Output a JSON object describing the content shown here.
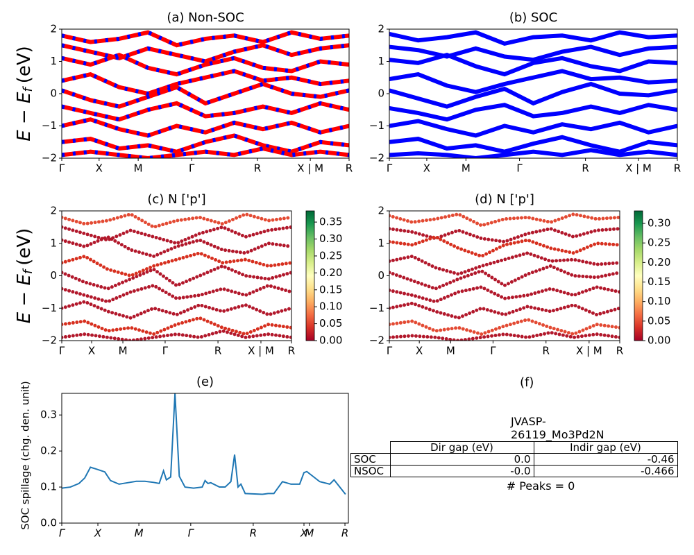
{
  "chart_data": [
    {
      "type": "band",
      "title": "(a) Non-SOC",
      "ylabel": {
        "main": "E − E",
        "sub": "f",
        "unit": "(eV)"
      },
      "color": "#ff0000",
      "dash_color": "#0000ff",
      "xlim": [
        0,
        1
      ],
      "xticks": [
        {
          "value": 0,
          "label": "Γ"
        },
        {
          "value": 0.13,
          "label": "X"
        },
        {
          "value": 0.266,
          "label": "M"
        },
        {
          "value": 0.452,
          "label": "Γ"
        },
        {
          "value": 0.681,
          "label": "R"
        },
        {
          "value": 0.865,
          "label": "X | M"
        },
        {
          "value": 1,
          "label": "R"
        }
      ],
      "ylim": [
        -2,
        2
      ],
      "yticks": [
        {
          "value": -2,
          "label": "−2"
        },
        {
          "value": -1,
          "label": "−1"
        },
        0,
        1,
        2
      ],
      "x": [
        0,
        0.1,
        0.2,
        0.3,
        0.4,
        0.5,
        0.6,
        0.7,
        0.8,
        0.9,
        1
      ],
      "series": [
        {
          "values": [
            1.8,
            1.6,
            1.7,
            1.9,
            1.5,
            1.7,
            1.8,
            1.6,
            1.9,
            1.7,
            1.8
          ]
        },
        {
          "values": [
            1.5,
            1.3,
            1.1,
            1.4,
            1.2,
            1.0,
            1.3,
            1.5,
            1.2,
            1.4,
            1.5
          ]
        },
        {
          "values": [
            1.1,
            0.9,
            1.2,
            0.8,
            0.6,
            0.9,
            1.1,
            0.8,
            0.7,
            1.0,
            0.9
          ]
        },
        {
          "values": [
            0.4,
            0.6,
            0.2,
            0.0,
            0.3,
            0.5,
            0.7,
            0.4,
            0.5,
            0.3,
            0.4
          ]
        },
        {
          "values": [
            0.1,
            -0.2,
            -0.4,
            -0.1,
            0.2,
            -0.3,
            0.0,
            0.3,
            0.0,
            -0.1,
            0.1
          ]
        },
        {
          "values": [
            -0.4,
            -0.6,
            -0.8,
            -0.5,
            -0.3,
            -0.7,
            -0.6,
            -0.4,
            -0.6,
            -0.3,
            -0.5
          ]
        },
        {
          "values": [
            -1.0,
            -0.8,
            -1.1,
            -1.3,
            -1.0,
            -1.2,
            -0.9,
            -1.1,
            -0.9,
            -1.2,
            -1.0
          ]
        },
        {
          "values": [
            -1.5,
            -1.4,
            -1.7,
            -1.6,
            -1.8,
            -1.5,
            -1.3,
            -1.6,
            -1.8,
            -1.5,
            -1.6
          ]
        },
        {
          "values": [
            -1.9,
            -1.8,
            -1.9,
            -2.0,
            -1.9,
            -1.8,
            -1.9,
            -1.7,
            -1.9,
            -1.8,
            -1.9
          ]
        }
      ]
    },
    {
      "type": "band",
      "title": "(b) SOC",
      "color": "#0000ff",
      "xlim": [
        0,
        1
      ],
      "xticks": [
        {
          "value": 0,
          "label": "Γ"
        },
        {
          "value": 0.13,
          "label": "X"
        },
        {
          "value": 0.266,
          "label": "M"
        },
        {
          "value": 0.452,
          "label": "Γ"
        },
        {
          "value": 0.681,
          "label": "R"
        },
        {
          "value": 0.865,
          "label": "X | M"
        },
        {
          "value": 1,
          "label": "R"
        }
      ],
      "ylim": [
        -2,
        2
      ],
      "yticks": [
        {
          "value": -2,
          "label": "−2"
        },
        {
          "value": -1,
          "label": "−1"
        },
        0,
        1,
        2
      ],
      "x": [
        0,
        0.1,
        0.2,
        0.3,
        0.4,
        0.5,
        0.6,
        0.7,
        0.8,
        0.9,
        1
      ],
      "series": [
        {
          "values": [
            1.85,
            1.65,
            1.75,
            1.9,
            1.55,
            1.75,
            1.8,
            1.65,
            1.9,
            1.75,
            1.8
          ]
        },
        {
          "values": [
            1.45,
            1.35,
            1.15,
            1.4,
            1.15,
            1.05,
            1.3,
            1.45,
            1.2,
            1.4,
            1.45
          ]
        },
        {
          "values": [
            1.05,
            0.95,
            1.2,
            0.85,
            0.6,
            0.95,
            1.1,
            0.85,
            0.7,
            1.0,
            0.95
          ]
        },
        {
          "values": [
            0.45,
            0.6,
            0.25,
            0.05,
            0.3,
            0.5,
            0.7,
            0.45,
            0.5,
            0.35,
            0.4
          ]
        },
        {
          "values": [
            0.1,
            -0.15,
            -0.4,
            -0.1,
            0.15,
            -0.3,
            0.05,
            0.3,
            0.0,
            -0.05,
            0.1
          ]
        },
        {
          "values": [
            -0.45,
            -0.6,
            -0.8,
            -0.5,
            -0.35,
            -0.7,
            -0.6,
            -0.4,
            -0.6,
            -0.35,
            -0.5
          ]
        },
        {
          "values": [
            -1.0,
            -0.85,
            -1.1,
            -1.3,
            -1.0,
            -1.2,
            -0.95,
            -1.1,
            -0.9,
            -1.2,
            -1.0
          ]
        },
        {
          "values": [
            -1.5,
            -1.4,
            -1.7,
            -1.6,
            -1.8,
            -1.55,
            -1.35,
            -1.6,
            -1.8,
            -1.5,
            -1.6
          ]
        },
        {
          "values": [
            -1.9,
            -1.85,
            -1.9,
            -2.0,
            -1.9,
            -1.8,
            -1.9,
            -1.75,
            -1.9,
            -1.8,
            -1.9
          ]
        }
      ]
    },
    {
      "type": "band_scatter",
      "title": "(c)  N ['p']",
      "ylabel": {
        "main": "E − E",
        "sub": "f",
        "unit": "(eV)"
      },
      "color": "#b2182b",
      "colormap": "RdYlGn",
      "clim": [
        0,
        0.383
      ],
      "cticks": [
        {
          "value": 0,
          "label": "0.00"
        },
        {
          "value": 0.05,
          "label": "0.05"
        },
        {
          "value": 0.1,
          "label": "0.10"
        },
        {
          "value": 0.15,
          "label": "0.15"
        },
        {
          "value": 0.2,
          "label": "0.20"
        },
        {
          "value": 0.25,
          "label": "0.25"
        },
        {
          "value": 0.3,
          "label": "0.30"
        },
        {
          "value": 0.35,
          "label": "0.35"
        }
      ],
      "xlim": [
        0,
        1
      ],
      "xticks": [
        {
          "value": 0,
          "label": "Γ"
        },
        {
          "value": 0.13,
          "label": "X"
        },
        {
          "value": 0.266,
          "label": "M"
        },
        {
          "value": 0.45,
          "label": "Γ"
        },
        {
          "value": 0.68,
          "label": "R"
        },
        {
          "value": 0.867,
          "label": "X | M"
        },
        {
          "value": 1,
          "label": "R"
        }
      ],
      "ylim": [
        -2,
        2
      ],
      "yticks": [
        {
          "value": -2,
          "label": "−2"
        },
        {
          "value": -1,
          "label": "−1"
        },
        0,
        1,
        2
      ],
      "x": [
        0,
        0.1,
        0.2,
        0.3,
        0.4,
        0.5,
        0.6,
        0.7,
        0.8,
        0.9,
        1
      ],
      "series": [
        {
          "values": [
            1.8,
            1.6,
            1.7,
            1.9,
            1.5,
            1.7,
            1.8,
            1.6,
            1.9,
            1.7,
            1.8
          ],
          "color": "#e34a33"
        },
        {
          "values": [
            1.5,
            1.3,
            1.1,
            1.4,
            1.2,
            1.0,
            1.3,
            1.5,
            1.2,
            1.4,
            1.5
          ]
        },
        {
          "values": [
            1.1,
            0.9,
            1.2,
            0.8,
            0.6,
            0.9,
            1.1,
            0.8,
            0.7,
            1.0,
            0.9
          ]
        },
        {
          "values": [
            0.4,
            0.6,
            0.2,
            0.0,
            0.3,
            0.5,
            0.7,
            0.4,
            0.5,
            0.3,
            0.4
          ],
          "color": "#d7301f"
        },
        {
          "values": [
            0.1,
            -0.2,
            -0.4,
            -0.1,
            0.2,
            -0.3,
            0.0,
            0.3,
            0.0,
            -0.1,
            0.1
          ]
        },
        {
          "values": [
            -0.4,
            -0.6,
            -0.8,
            -0.5,
            -0.3,
            -0.7,
            -0.6,
            -0.4,
            -0.6,
            -0.3,
            -0.5
          ]
        },
        {
          "values": [
            -1.0,
            -0.8,
            -1.1,
            -1.3,
            -1.0,
            -1.2,
            -0.9,
            -1.1,
            -0.9,
            -1.2,
            -1.0
          ]
        },
        {
          "values": [
            -1.5,
            -1.4,
            -1.7,
            -1.6,
            -1.8,
            -1.5,
            -1.3,
            -1.6,
            -1.8,
            -1.5,
            -1.6
          ],
          "color": "#d7301f"
        },
        {
          "values": [
            -1.9,
            -1.8,
            -1.9,
            -2.0,
            -1.9,
            -1.8,
            -1.9,
            -1.7,
            -1.9,
            -1.8,
            -1.9
          ]
        }
      ]
    },
    {
      "type": "band_scatter",
      "title": "(d) N ['p']",
      "color": "#b2182b",
      "colormap": "RdYlGn",
      "clim": [
        0,
        0.332
      ],
      "cticks": [
        {
          "value": 0,
          "label": "0.00"
        },
        {
          "value": 0.05,
          "label": "0.05"
        },
        {
          "value": 0.1,
          "label": "0.10"
        },
        {
          "value": 0.15,
          "label": "0.15"
        },
        {
          "value": 0.2,
          "label": "0.20"
        },
        {
          "value": 0.25,
          "label": "0.25"
        },
        {
          "value": 0.3,
          "label": "0.30"
        }
      ],
      "xlim": [
        0,
        1
      ],
      "xticks": [
        {
          "value": 0,
          "label": "Γ"
        },
        {
          "value": 0.13,
          "label": "X"
        },
        {
          "value": 0.266,
          "label": "M"
        },
        {
          "value": 0.45,
          "label": "Γ"
        },
        {
          "value": 0.68,
          "label": "R"
        },
        {
          "value": 0.867,
          "label": "X | M"
        },
        {
          "value": 1,
          "label": "R"
        }
      ],
      "ylim": [
        -2,
        2
      ],
      "yticks": [
        {
          "value": -2,
          "label": "−2"
        },
        {
          "value": -1,
          "label": "−1"
        },
        0,
        1,
        2
      ],
      "x": [
        0,
        0.1,
        0.2,
        0.3,
        0.4,
        0.5,
        0.6,
        0.7,
        0.8,
        0.9,
        1
      ],
      "series": [
        {
          "values": [
            1.85,
            1.65,
            1.75,
            1.9,
            1.55,
            1.75,
            1.8,
            1.65,
            1.9,
            1.75,
            1.8
          ],
          "color": "#e34a33"
        },
        {
          "values": [
            1.45,
            1.35,
            1.15,
            1.4,
            1.15,
            1.05,
            1.3,
            1.45,
            1.2,
            1.4,
            1.45
          ]
        },
        {
          "values": [
            1.05,
            0.95,
            1.2,
            0.85,
            0.6,
            0.95,
            1.1,
            0.85,
            0.7,
            1.0,
            0.95
          ],
          "color": "#d7301f"
        },
        {
          "values": [
            0.45,
            0.6,
            0.25,
            0.05,
            0.3,
            0.5,
            0.7,
            0.45,
            0.5,
            0.35,
            0.4
          ]
        },
        {
          "values": [
            0.1,
            -0.15,
            -0.4,
            -0.1,
            0.15,
            -0.3,
            0.05,
            0.3,
            0.0,
            -0.05,
            0.1
          ]
        },
        {
          "values": [
            -0.45,
            -0.6,
            -0.8,
            -0.5,
            -0.35,
            -0.7,
            -0.6,
            -0.4,
            -0.6,
            -0.35,
            -0.5
          ]
        },
        {
          "values": [
            -1.0,
            -0.85,
            -1.1,
            -1.3,
            -1.0,
            -1.2,
            -0.95,
            -1.1,
            -0.9,
            -1.2,
            -1.0
          ]
        },
        {
          "values": [
            -1.5,
            -1.4,
            -1.7,
            -1.6,
            -1.8,
            -1.55,
            -1.35,
            -1.6,
            -1.8,
            -1.5,
            -1.6
          ],
          "color": "#e34a33"
        },
        {
          "values": [
            -1.9,
            -1.85,
            -1.9,
            -2.0,
            -1.9,
            -1.8,
            -1.9,
            -1.75,
            -1.9,
            -1.8,
            -1.9
          ]
        }
      ]
    },
    {
      "type": "line",
      "title": "(e)",
      "ylabel_text": "SOC spillage (chg. den. unit)",
      "color": "#1f77b4",
      "xlim": [
        0,
        1
      ],
      "xticks": [
        {
          "value": 0,
          "label": "Γ"
        },
        {
          "value": 0.126,
          "label": "X"
        },
        {
          "value": 0.269,
          "label": "M"
        },
        {
          "value": 0.45,
          "label": "Γ"
        },
        {
          "value": 0.668,
          "label": "R"
        },
        {
          "value": 0.845,
          "label": "X"
        },
        {
          "value": 0.864,
          "label": "M"
        },
        {
          "value": 0.988,
          "label": "R"
        }
      ],
      "ylim": [
        0,
        0.36
      ],
      "yticks": [
        {
          "value": 0,
          "label": "0.0"
        },
        0.1,
        0.2,
        0.3
      ],
      "x": [
        0,
        0.03,
        0.06,
        0.08,
        0.1,
        0.12,
        0.15,
        0.17,
        0.2,
        0.23,
        0.26,
        0.29,
        0.32,
        0.34,
        0.355,
        0.365,
        0.38,
        0.395,
        0.41,
        0.43,
        0.46,
        0.49,
        0.5,
        0.51,
        0.52,
        0.55,
        0.57,
        0.59,
        0.603,
        0.615,
        0.625,
        0.64,
        0.7,
        0.72,
        0.74,
        0.77,
        0.8,
        0.83,
        0.845,
        0.855,
        0.9,
        0.935,
        0.95,
        0.99
      ],
      "values": [
        0.097,
        0.1,
        0.11,
        0.125,
        0.155,
        0.15,
        0.142,
        0.118,
        0.108,
        0.112,
        0.116,
        0.116,
        0.113,
        0.11,
        0.145,
        0.12,
        0.128,
        0.36,
        0.13,
        0.1,
        0.097,
        0.1,
        0.118,
        0.11,
        0.112,
        0.1,
        0.1,
        0.115,
        0.19,
        0.1,
        0.108,
        0.082,
        0.08,
        0.082,
        0.082,
        0.115,
        0.108,
        0.108,
        0.14,
        0.143,
        0.115,
        0.108,
        0.12,
        0.08
      ]
    }
  ],
  "table_panel": {
    "title": "(f)",
    "caption": "JVASP-26119_Mo3Pd2N",
    "columns": [
      "Dir gap (eV)",
      "Indir gap (eV)"
    ],
    "rows": [
      [
        "SOC",
        "0.0",
        "-0.46"
      ],
      [
        "NSOC",
        "-0.0",
        "-0.466"
      ]
    ],
    "note": "# Peaks = 0"
  }
}
